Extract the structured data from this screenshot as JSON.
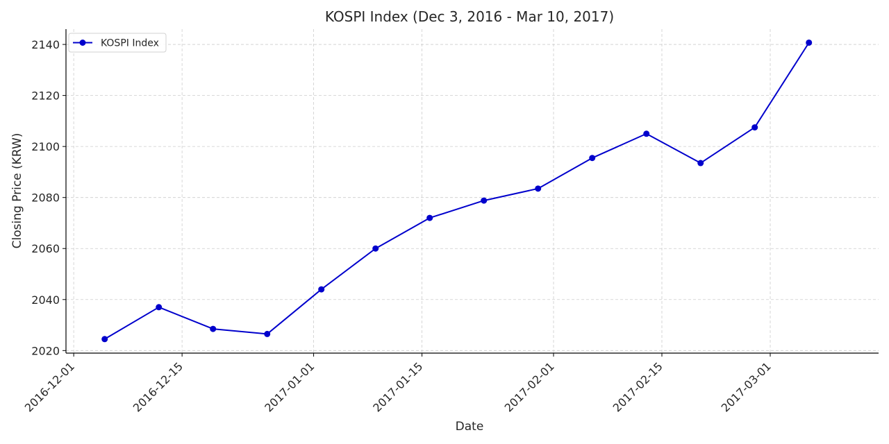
{
  "chart_data": {
    "type": "line",
    "title": "KOSPI Index (Dec 3, 2016 - Mar 10, 2017)",
    "xlabel": "Date",
    "ylabel": "Closing Price (KRW)",
    "x_axis": "date",
    "xlim": [
      "2016-11-30",
      "2017-03-15"
    ],
    "ylim": [
      2019,
      2146
    ],
    "x_ticks": [
      "2016-12-01",
      "2016-12-15",
      "2017-01-01",
      "2017-01-15",
      "2017-02-01",
      "2017-02-15",
      "2017-03-01"
    ],
    "y_ticks": [
      2020,
      2040,
      2060,
      2080,
      2100,
      2120,
      2140
    ],
    "grid": true,
    "legend_position": "top-left",
    "series": [
      {
        "name": "KOSPI Index",
        "color": "#0000cc",
        "marker": "circle",
        "x": [
          "2016-12-05",
          "2016-12-12",
          "2016-12-19",
          "2016-12-26",
          "2017-01-02",
          "2017-01-09",
          "2017-01-16",
          "2017-01-23",
          "2017-01-30",
          "2017-02-06",
          "2017-02-13",
          "2017-02-20",
          "2017-02-27",
          "2017-03-06"
        ],
        "y": [
          2024.5,
          2037,
          2028.5,
          2026.5,
          2044,
          2060,
          2072,
          2078.8,
          2083.5,
          2095.5,
          2105,
          2093.5,
          2107.5,
          2140.7
        ]
      }
    ]
  }
}
